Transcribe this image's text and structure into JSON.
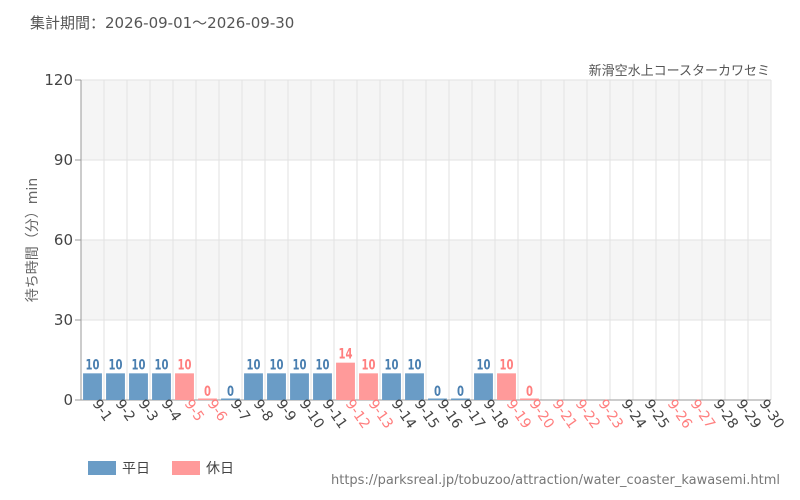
{
  "period_label": "集計期間：2026-09-01～2026-09-30",
  "attraction_name": "新滑空水上コースターカワセミ",
  "source_url": "https://parksreal.jp/tobuzoo/attraction/water_coaster_kawasemi.html",
  "legend": {
    "weekday_label": "平日",
    "holiday_label": "休日"
  },
  "colors": {
    "weekday": "#6a9cc6",
    "holiday": "#ff9a9a",
    "weekday_label_text": "#4a7fb0",
    "holiday_label_text": "#ff7f7f",
    "band": "#f5f5f5"
  },
  "chart_data": {
    "type": "bar",
    "ylabel": "待ち時間（分）min",
    "ylim": [
      0,
      120
    ],
    "yticks": [
      0,
      30,
      60,
      90,
      120
    ],
    "grid": true,
    "legend_position": "bottom-left",
    "categories": [
      "9-1",
      "9-2",
      "9-3",
      "9-4",
      "9-5",
      "9-6",
      "9-7",
      "9-8",
      "9-9",
      "9-10",
      "9-11",
      "9-12",
      "9-13",
      "9-14",
      "9-15",
      "9-16",
      "9-17",
      "9-18",
      "9-19",
      "9-20",
      "9-21",
      "9-22",
      "9-23",
      "9-24",
      "9-25",
      "9-26",
      "9-27",
      "9-28",
      "9-29",
      "9-30"
    ],
    "values": [
      10,
      10,
      10,
      10,
      10,
      0,
      0,
      10,
      10,
      10,
      10,
      14,
      10,
      10,
      10,
      0,
      0,
      10,
      10,
      0,
      null,
      null,
      null,
      null,
      null,
      null,
      null,
      null,
      null,
      null
    ],
    "day_type": [
      "weekday",
      "weekday",
      "weekday",
      "weekday",
      "holiday",
      "holiday",
      "weekday",
      "weekday",
      "weekday",
      "weekday",
      "weekday",
      "holiday",
      "holiday",
      "weekday",
      "weekday",
      "weekday",
      "weekday",
      "weekday",
      "holiday",
      "holiday",
      "holiday",
      "holiday",
      "holiday",
      "weekday",
      "weekday",
      "holiday",
      "holiday",
      "weekday",
      "weekday",
      "weekday"
    ]
  }
}
